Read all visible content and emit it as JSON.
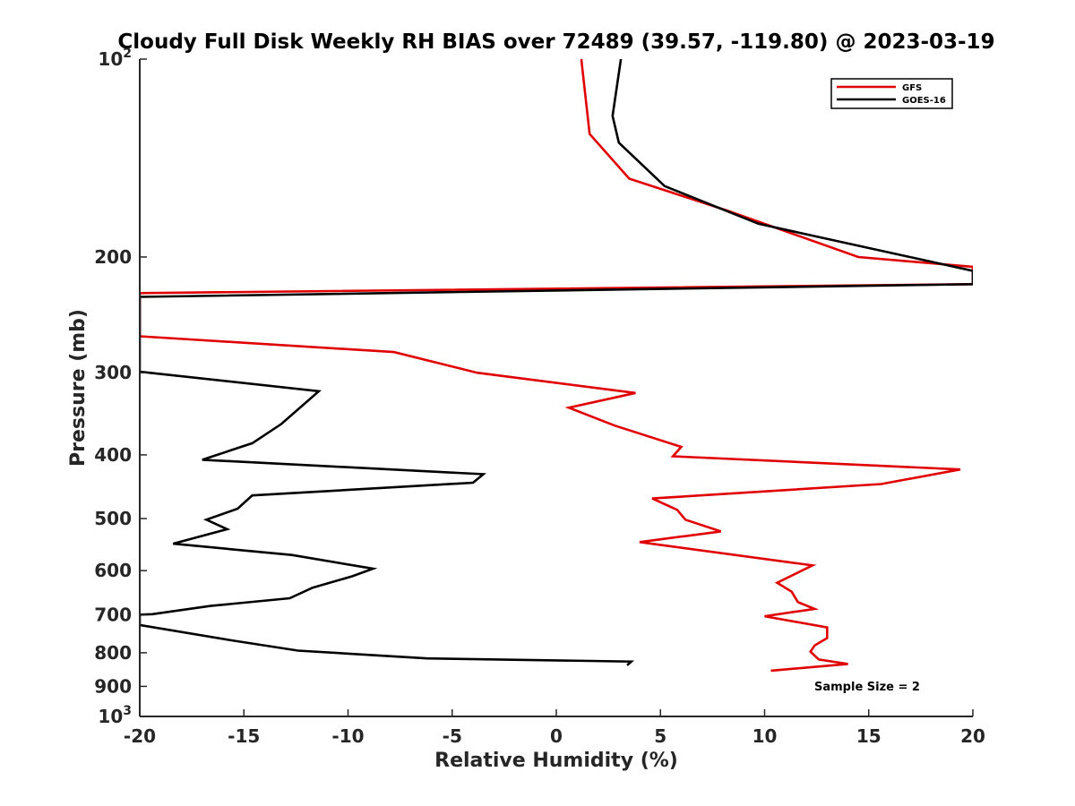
{
  "chart_data": {
    "type": "line",
    "title": "Cloudy Full Disk Weekly RH BIAS over 72489 (39.57, -119.80) @ 2023-03-19",
    "xlabel": "Relative Humidity (%)",
    "ylabel": "Pressure (mb)",
    "xlim": [
      -20,
      20
    ],
    "ylim": [
      100,
      1000
    ],
    "y_scale": "log",
    "y_reversed": true,
    "grid": false,
    "legend_position": "top-right",
    "x_ticks": [
      "-20",
      "-15",
      "-10",
      "-5",
      "0",
      "5",
      "10",
      "15",
      "20"
    ],
    "y_ticks": [
      {
        "value": 100,
        "label": "10",
        "exp": "2"
      },
      {
        "value": 200,
        "label": "200",
        "exp": ""
      },
      {
        "value": 300,
        "label": "300",
        "exp": ""
      },
      {
        "value": 400,
        "label": "400",
        "exp": ""
      },
      {
        "value": 500,
        "label": "500",
        "exp": ""
      },
      {
        "value": 600,
        "label": "600",
        "exp": ""
      },
      {
        "value": 700,
        "label": "700",
        "exp": ""
      },
      {
        "value": 800,
        "label": "800",
        "exp": ""
      },
      {
        "value": 900,
        "label": "900",
        "exp": ""
      },
      {
        "value": 1000,
        "label": "10",
        "exp": "3"
      }
    ],
    "annotation": "Sample Size = 2",
    "series": [
      {
        "name": "GFS",
        "color": "#e00000",
        "points": [
          [
            1.2,
            100
          ],
          [
            1.6,
            130
          ],
          [
            3.5,
            152
          ],
          [
            8.2,
            170
          ],
          [
            14.5,
            200
          ],
          [
            20,
            207
          ],
          [
            20,
            220
          ],
          [
            -20,
            227
          ],
          [
            -20,
            264
          ],
          [
            -7.8,
            279
          ],
          [
            -3.8,
            300
          ],
          [
            3.8,
            322
          ],
          [
            0.6,
            339
          ],
          [
            2.8,
            361
          ],
          [
            6.0,
            389
          ],
          [
            5.6,
            402
          ],
          [
            19.4,
            421
          ],
          [
            15.6,
            443
          ],
          [
            4.6,
            466
          ],
          [
            5.8,
            485
          ],
          [
            6.2,
            502
          ],
          [
            7.9,
            523
          ],
          [
            4.0,
            543
          ],
          [
            12.3,
            589
          ],
          [
            10.6,
            626
          ],
          [
            11.3,
            646
          ],
          [
            11.6,
            670
          ],
          [
            12.4,
            686
          ],
          [
            10.0,
            704
          ],
          [
            13.0,
            732
          ],
          [
            13.0,
            760
          ],
          [
            12.4,
            780
          ],
          [
            12.2,
            797
          ],
          [
            12.6,
            819
          ],
          [
            14.0,
            832
          ],
          [
            10.3,
            852
          ]
        ]
      },
      {
        "name": "GOES-16",
        "color": "#000000",
        "points": [
          [
            3.1,
            100
          ],
          [
            2.7,
            122
          ],
          [
            3.0,
            134
          ],
          [
            5.2,
            156
          ],
          [
            9.7,
            178
          ],
          [
            20,
            210
          ],
          [
            20,
            220
          ],
          [
            -20,
            230
          ],
          [
            -20,
            299
          ],
          [
            -11.4,
            320
          ],
          [
            -13.2,
            359
          ],
          [
            -14.6,
            384
          ],
          [
            -17.0,
            407
          ],
          [
            -3.5,
            428
          ],
          [
            -4.0,
            441
          ],
          [
            -14.6,
            461
          ],
          [
            -15.3,
            483
          ],
          [
            -16.8,
            502
          ],
          [
            -15.8,
            519
          ],
          [
            -18.4,
            546
          ],
          [
            -12.7,
            568
          ],
          [
            -8.8,
            596
          ],
          [
            -9.8,
            612
          ],
          [
            -11.7,
            637
          ],
          [
            -12.8,
            661
          ],
          [
            -16.6,
            679
          ],
          [
            -19.4,
            699
          ],
          [
            -20,
            700
          ],
          [
            -20,
            726
          ],
          [
            -15.6,
            766
          ],
          [
            -12.4,
            794
          ],
          [
            -6.2,
            816
          ],
          [
            3.6,
            825
          ],
          [
            3.4,
            836
          ]
        ]
      }
    ]
  }
}
